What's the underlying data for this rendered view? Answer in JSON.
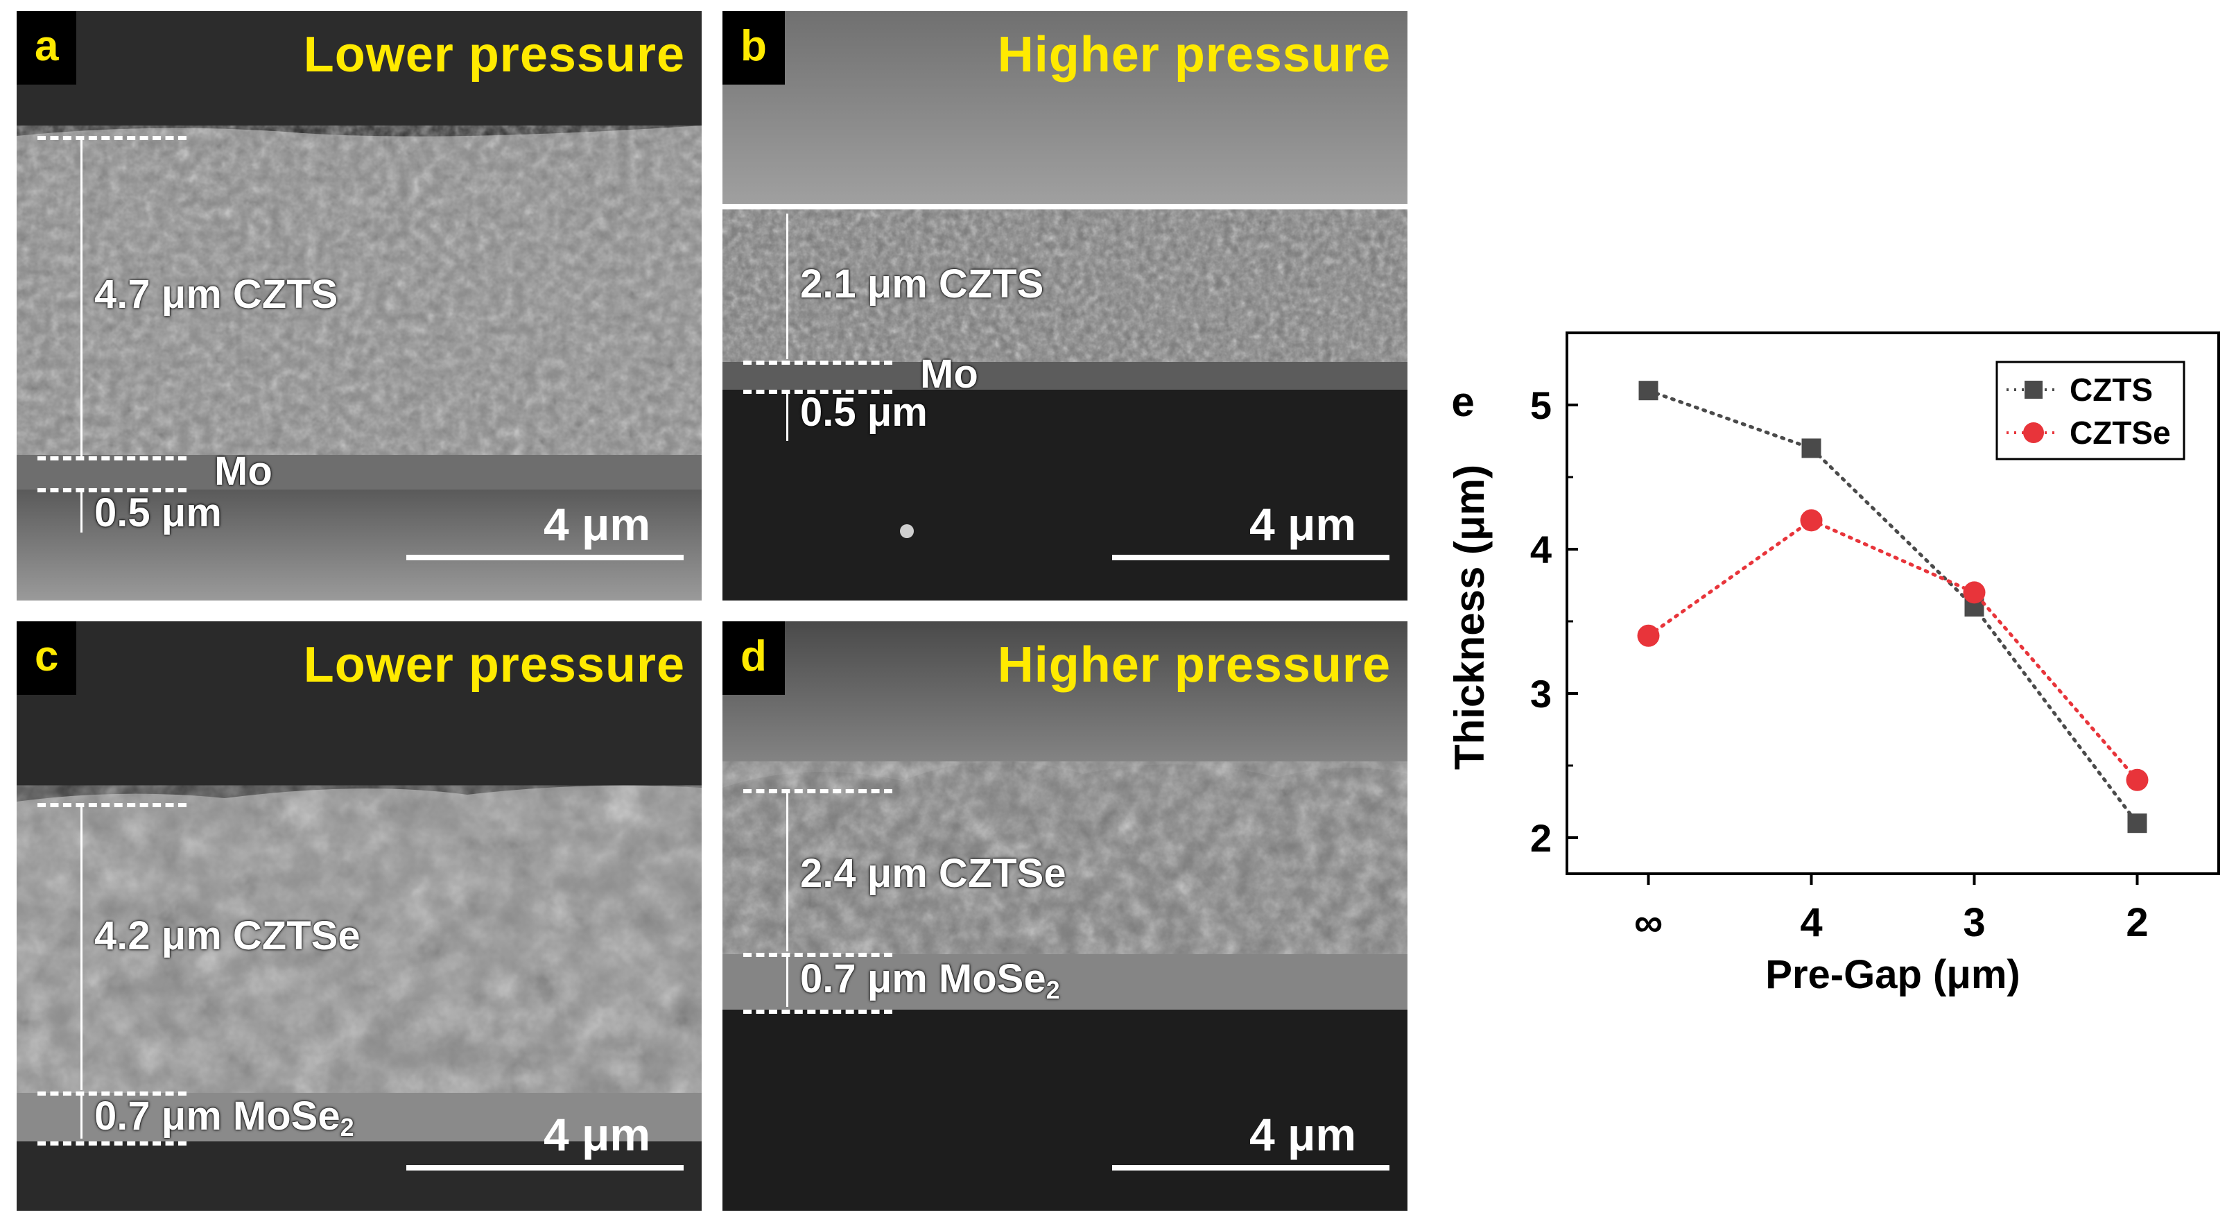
{
  "panels": {
    "a": {
      "label": "a",
      "condition": "Lower pressure",
      "film": "4.7 μm CZTS",
      "layer_label": "Mo",
      "layer_thickness": "0.5 μm",
      "scale": "4 μm"
    },
    "b": {
      "label": "b",
      "condition": "Higher pressure",
      "film": "2.1 μm CZTS",
      "layer_label": "Mo",
      "layer_thickness": "0.5 μm",
      "scale": "4 μm"
    },
    "c": {
      "label": "c",
      "condition": "Lower pressure",
      "film": "4.2 μm CZTSe",
      "layer_main": "0.7 μm MoSe",
      "layer_sub": "2",
      "scale": "4 μm"
    },
    "d": {
      "label": "d",
      "condition": "Higher pressure",
      "film": "2.4 μm CZTSe",
      "layer_main": "0.7 μm MoSe",
      "layer_sub": "2",
      "scale": "4 μm"
    }
  },
  "chart_data": {
    "type": "line",
    "panel_label": "e",
    "categories": [
      "∞",
      "4",
      "3",
      "2"
    ],
    "series": [
      {
        "name": "CZTS",
        "values": [
          5.1,
          4.7,
          3.6,
          2.1
        ],
        "color": "#4a4a4a",
        "marker": "square"
      },
      {
        "name": "CZTSe",
        "values": [
          3.4,
          4.2,
          3.7,
          2.4
        ],
        "color": "#e8343a",
        "marker": "circle"
      }
    ],
    "xlabel": "Pre-Gap (μm)",
    "ylabel": "Thickness (μm)",
    "yticks": [
      2,
      3,
      4,
      5
    ],
    "ylim": [
      1.75,
      5.5
    ],
    "legend_position": "top-right",
    "grid": false
  }
}
